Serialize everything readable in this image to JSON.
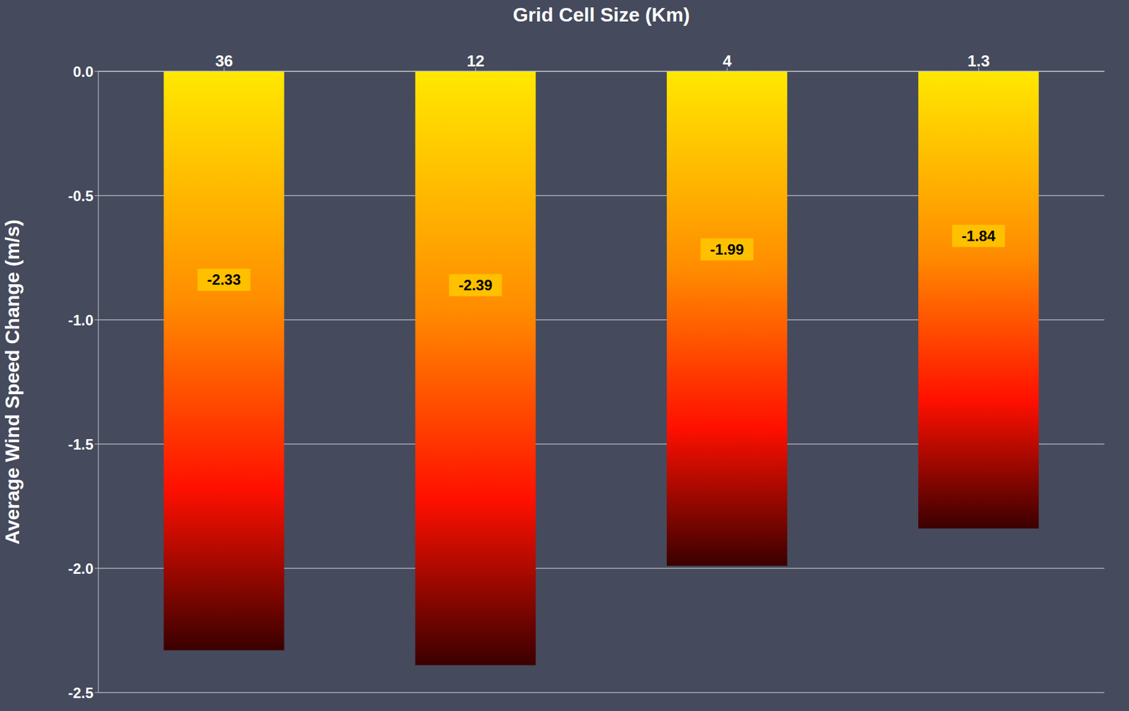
{
  "chart_data": {
    "type": "bar",
    "x_label": "Grid Cell Size (Km)",
    "y_label": "Average Wind Speed Change (m/s)",
    "categories": [
      "36",
      "12",
      "4",
      "1.3"
    ],
    "values": [
      -2.33,
      -2.39,
      -1.99,
      -1.84
    ],
    "color": "#FF8C00",
    "ylim": [
      -2.5,
      0
    ],
    "yticks": [
      {
        "value": 0,
        "label": "0.0"
      },
      -0.5,
      {
        "value": -1,
        "label": "-1.0"
      },
      -1.5,
      {
        "value": -2,
        "label": "-2.0"
      },
      -2.5
    ],
    "grid": true,
    "data_labels": true
  }
}
